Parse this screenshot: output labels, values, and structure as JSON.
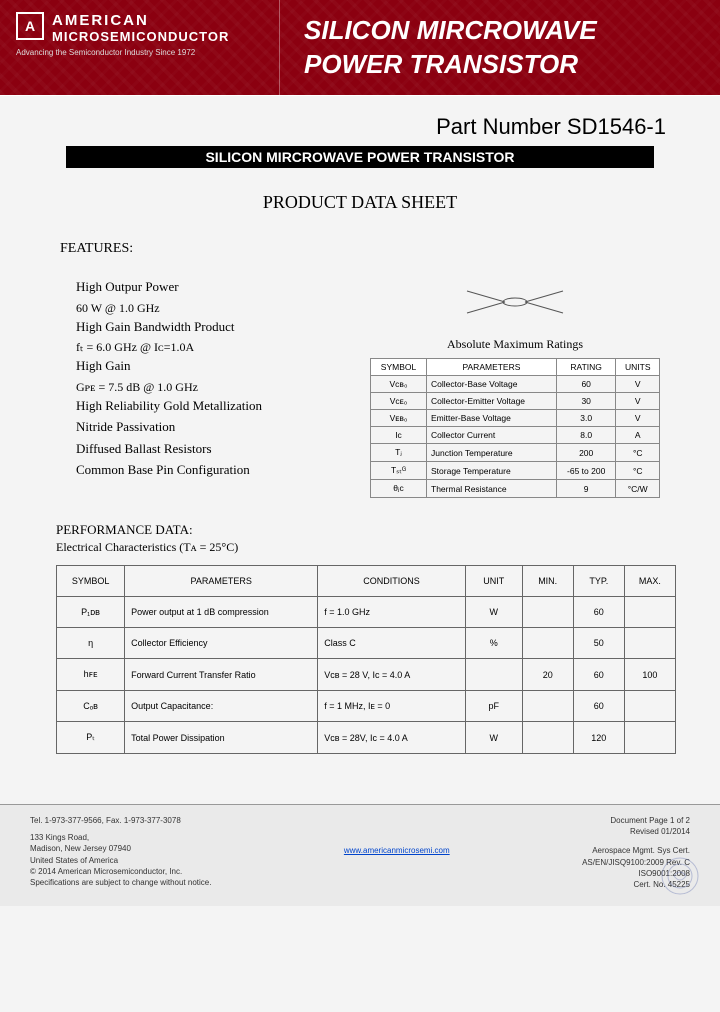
{
  "header": {
    "company_line1": "AMERICAN",
    "company_line2": "MICROSEMICONDUCTOR",
    "tagline": "Advancing the Semiconductor Industry Since 1972",
    "title_line1": "SILICON MIRCROWAVE",
    "title_line2": "POWER TRANSISTOR",
    "banner_bg": "#8b0010"
  },
  "part_number": "Part Number SD1546-1",
  "black_bar": "SILICON MIRCROWAVE POWER TRANSISTOR",
  "sheet_title": "PRODUCT DATA SHEET",
  "features_label": "FEATURES:",
  "features": {
    "f1": "High Outpur Power",
    "f1_sub": "60 W @ 1.0 GHz",
    "f2": "High Gain Bandwidth Product",
    "f2_sub": "fₜ = 6.0 GHz @ Iᴄ=1.0A",
    "f3": "High Gain",
    "f3_sub": "Gᴘᴇ = 7.5 dB @ 1.0 GHz",
    "f4": "High Reliability Gold Metallization",
    "f5": "Nitride Passivation",
    "f6": "Diffused Ballast Resistors",
    "f7": "Common Base Pin Configuration"
  },
  "ratings": {
    "title": "Absolute Maximum Ratings",
    "headers": {
      "symbol": "SYMBOL",
      "parameters": "PARAMETERS",
      "rating": "RATING",
      "units": "UNITS"
    },
    "rows": [
      {
        "symbol": "Vᴄʙ₀",
        "param": "Collector-Base Voltage",
        "rating": "60",
        "units": "V"
      },
      {
        "symbol": "Vᴄᴇ₀",
        "param": "Collector-Emitter Voltage",
        "rating": "30",
        "units": "V"
      },
      {
        "symbol": "Vᴇʙ₀",
        "param": "Emitter-Base Voltage",
        "rating": "3.0",
        "units": "V"
      },
      {
        "symbol": "Iᴄ",
        "param": "Collector Current",
        "rating": "8.0",
        "units": "A"
      },
      {
        "symbol": "Tⱼ",
        "param": "Junction Temperature",
        "rating": "200",
        "units": "°C"
      },
      {
        "symbol": "Tₛₜᴳ",
        "param": "Storage Temperature",
        "rating": "-65 to 200",
        "units": "°C"
      },
      {
        "symbol": "θⱼᴄ",
        "param": "Thermal Resistance",
        "rating": "9",
        "units": "°C/W"
      }
    ]
  },
  "perf_label": "PERFORMANCE DATA:",
  "perf_sub": "Electrical Characteristics (Tᴀ =  25°C)",
  "perf": {
    "headers": {
      "symbol": "SYMBOL",
      "parameters": "PARAMETERS",
      "conditions": "CONDITIONS",
      "unit": "UNIT",
      "min": "MIN.",
      "typ": "TYP.",
      "max": "MAX."
    },
    "rows": [
      {
        "symbol": "P₁ᴅʙ",
        "param": "Power output at 1 dB compression",
        "cond": "f = 1.0 GHz",
        "unit": "W",
        "min": "",
        "typ": "60",
        "max": ""
      },
      {
        "symbol": "η",
        "param": "Collector Efficiency",
        "cond": "Class C",
        "unit": "%",
        "min": "",
        "typ": "50",
        "max": ""
      },
      {
        "symbol": "hꜰᴇ",
        "param": "Forward Current Transfer Ratio",
        "cond": "Vᴄʙ = 28 V, Iᴄ = 4.0 A",
        "unit": "",
        "min": "20",
        "typ": "60",
        "max": "100"
      },
      {
        "symbol": "Cₒʙ",
        "param": "Output Capacitance:",
        "cond": "f = 1 MHz, Iᴇ = 0",
        "unit": "pF",
        "min": "",
        "typ": "60",
        "max": ""
      },
      {
        "symbol": "Pₜ",
        "param": "Total Power Dissipation",
        "cond": "Vᴄʙ = 28V, Iᴄ = 4.0 A",
        "unit": "W",
        "min": "",
        "typ": "120",
        "max": ""
      }
    ]
  },
  "footer": {
    "tel": "Tel. 1-973-377-9566,   Fax. 1-973-377-3078",
    "addr1": "133 Kings Road,",
    "addr2": "Madison, New Jersey 07940",
    "addr3": "United States of America",
    "copyright": "© 2014 American Microsemiconductor, Inc.",
    "disclaimer": "Specifications are subject to change without notice.",
    "url": "www.americanmicrosemi.com",
    "doc_page": "Document Page 1 of 2",
    "revised": "Revised 01/2014",
    "cert1": "Aerospace Mgmt. Sys Cert.",
    "cert2": "AS/EN/JISQ9100:2009 Rev. C",
    "cert3": "ISO9001:2008",
    "cert4": "Cert. No. 45225"
  }
}
